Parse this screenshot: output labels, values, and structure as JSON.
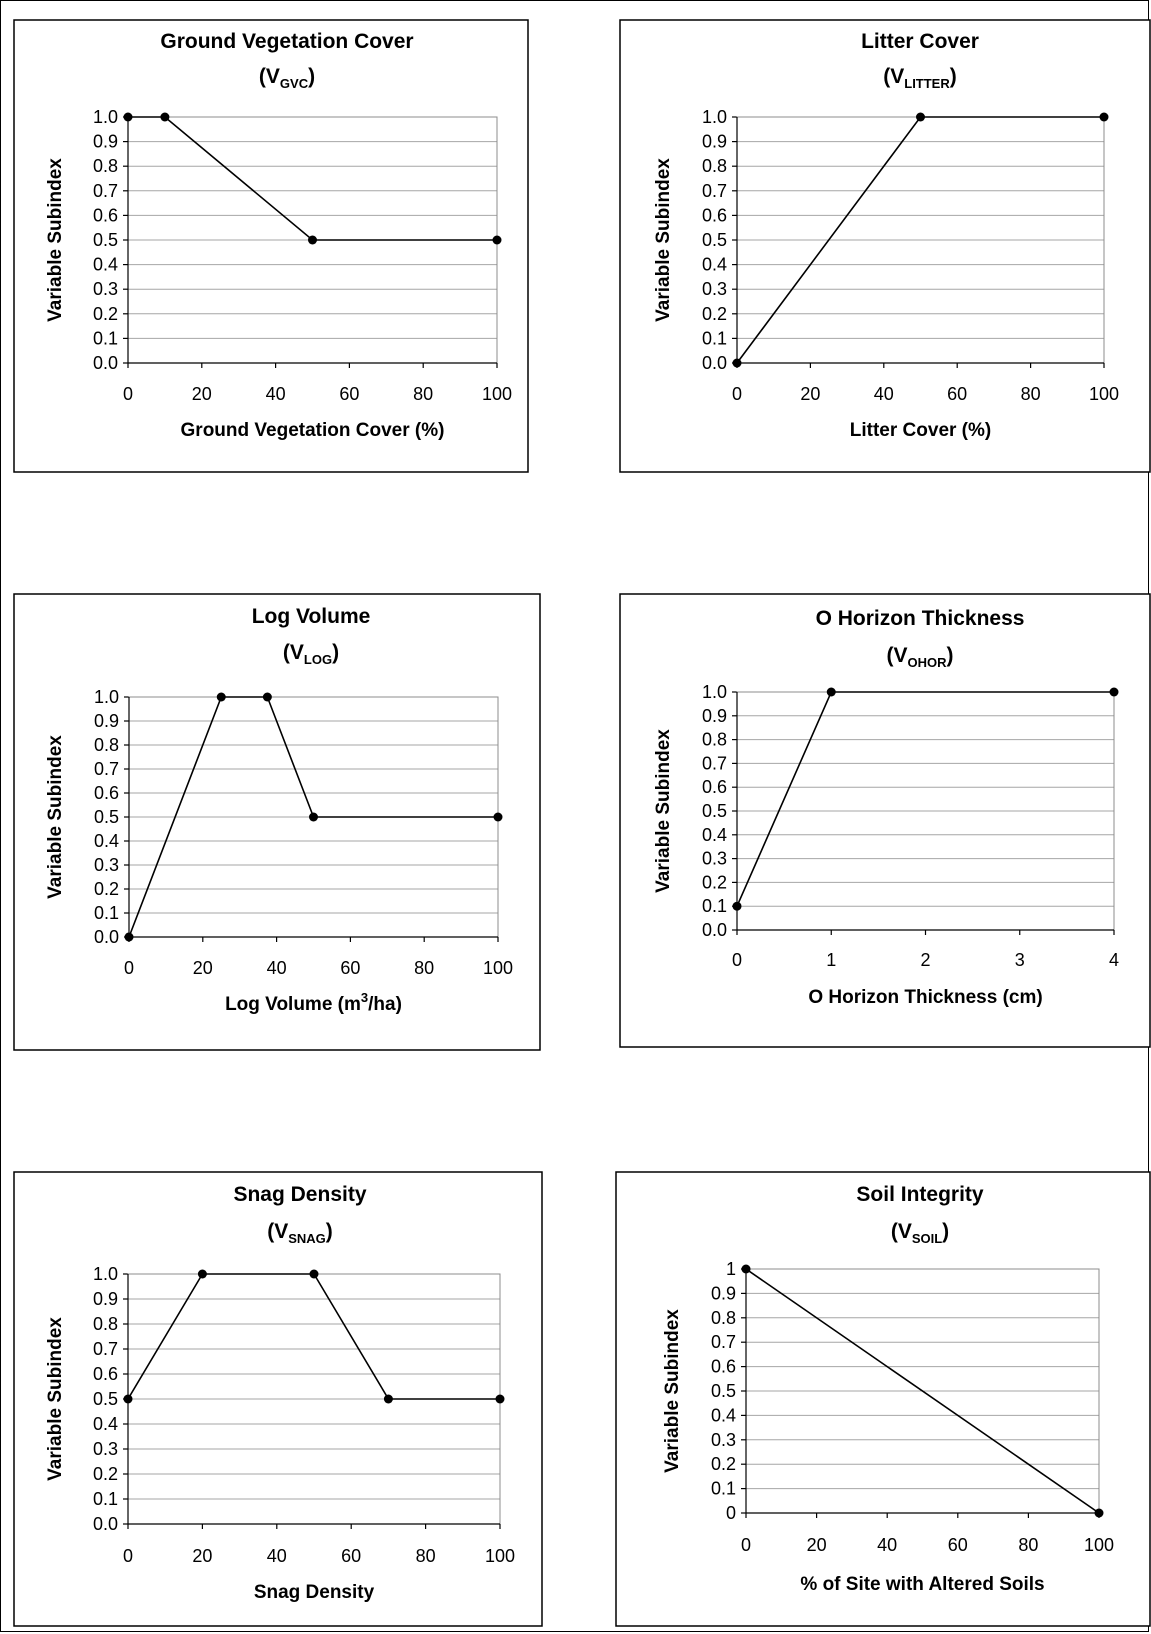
{
  "chart_data": [
    {
      "type": "line",
      "title": "Ground Vegetation Cover",
      "subtitle_main": "V",
      "subtitle_sub": "GVC",
      "xlabel": "Ground Vegetation Cover (%)",
      "ylabel": "Variable Subindex",
      "xlim": [
        0,
        100
      ],
      "ylim": [
        0,
        1
      ],
      "xticks": [
        "0",
        "20",
        "40",
        "60",
        "80",
        "100"
      ],
      "yticks": [
        "0.0",
        "0.1",
        "0.2",
        "0.3",
        "0.4",
        "0.5",
        "0.6",
        "0.7",
        "0.8",
        "0.9",
        "1.0"
      ],
      "grid": true,
      "series": [
        {
          "x": [
            0,
            10,
            50,
            100
          ],
          "y": [
            1.0,
            1.0,
            0.5,
            0.5
          ]
        }
      ]
    },
    {
      "type": "line",
      "title": "Litter Cover",
      "subtitle_main": "V",
      "subtitle_sub": "LITTER",
      "xlabel": "Litter Cover (%)",
      "ylabel": "Variable Subindex",
      "xlim": [
        0,
        100
      ],
      "ylim": [
        0,
        1
      ],
      "xticks": [
        "0",
        "20",
        "40",
        "60",
        "80",
        "100"
      ],
      "yticks": [
        "0.0",
        "0.1",
        "0.2",
        "0.3",
        "0.4",
        "0.5",
        "0.6",
        "0.7",
        "0.8",
        "0.9",
        "1.0"
      ],
      "grid": true,
      "series": [
        {
          "x": [
            0,
            50,
            100
          ],
          "y": [
            0.0,
            1.0,
            1.0
          ]
        }
      ]
    },
    {
      "type": "line",
      "title": "Log Volume",
      "subtitle_main": "V",
      "subtitle_sub": "LOG",
      "xlabel_main": "Log Volume (m",
      "xlabel_sup": "3",
      "xlabel_end": "/ha)",
      "ylabel": "Variable Subindex",
      "xlim": [
        0,
        100
      ],
      "ylim": [
        0,
        1
      ],
      "xticks": [
        "0",
        "20",
        "40",
        "60",
        "80",
        "100"
      ],
      "yticks": [
        "0.0",
        "0.1",
        "0.2",
        "0.3",
        "0.4",
        "0.5",
        "0.6",
        "0.7",
        "0.8",
        "0.9",
        "1.0"
      ],
      "grid": true,
      "series": [
        {
          "x": [
            0,
            25,
            37.5,
            50,
            100
          ],
          "y": [
            0.0,
            1.0,
            1.0,
            0.5,
            0.5
          ]
        }
      ]
    },
    {
      "type": "line",
      "title": "O Horizon Thickness",
      "subtitle_main": "V",
      "subtitle_sub": "OHOR",
      "xlabel": "O Horizon Thickness (cm)",
      "ylabel": "Variable Subindex",
      "xlim": [
        0,
        4
      ],
      "ylim": [
        0,
        1
      ],
      "xticks": [
        "0",
        "1",
        "2",
        "3",
        "4"
      ],
      "yticks": [
        "0.0",
        "0.1",
        "0.2",
        "0.3",
        "0.4",
        "0.5",
        "0.6",
        "0.7",
        "0.8",
        "0.9",
        "1.0"
      ],
      "grid": true,
      "series": [
        {
          "x": [
            0,
            1,
            4
          ],
          "y": [
            0.1,
            1.0,
            1.0
          ]
        }
      ]
    },
    {
      "type": "line",
      "title": "Snag Density",
      "subtitle_main": "V",
      "subtitle_sub": "SNAG",
      "xlabel": "Snag Density",
      "ylabel": "Variable Subindex",
      "xlim": [
        0,
        100
      ],
      "ylim": [
        0,
        1
      ],
      "xticks": [
        "0",
        "20",
        "40",
        "60",
        "80",
        "100"
      ],
      "yticks": [
        "0.0",
        "0.1",
        "0.2",
        "0.3",
        "0.4",
        "0.5",
        "0.6",
        "0.7",
        "0.8",
        "0.9",
        "1.0"
      ],
      "grid": true,
      "series": [
        {
          "x": [
            0,
            20,
            50,
            70,
            100
          ],
          "y": [
            0.5,
            1.0,
            1.0,
            0.5,
            0.5
          ]
        }
      ]
    },
    {
      "type": "line",
      "title": "Soil Integrity",
      "subtitle_main": "V",
      "subtitle_sub": "SOIL",
      "xlabel": "% of Site with Altered Soils",
      "ylabel": "Variable Subindex",
      "xlim": [
        0,
        100
      ],
      "ylim": [
        0,
        1
      ],
      "xticks": [
        "0",
        "20",
        "40",
        "60",
        "80",
        "100"
      ],
      "yticks": [
        "0",
        "0.1",
        "0.2",
        "0.3",
        "0.4",
        "0.5",
        "0.6",
        "0.7",
        "0.8",
        "0.9",
        "1"
      ],
      "grid": true,
      "series": [
        {
          "x": [
            0,
            100
          ],
          "y": [
            1.0,
            0.0
          ]
        }
      ]
    }
  ]
}
